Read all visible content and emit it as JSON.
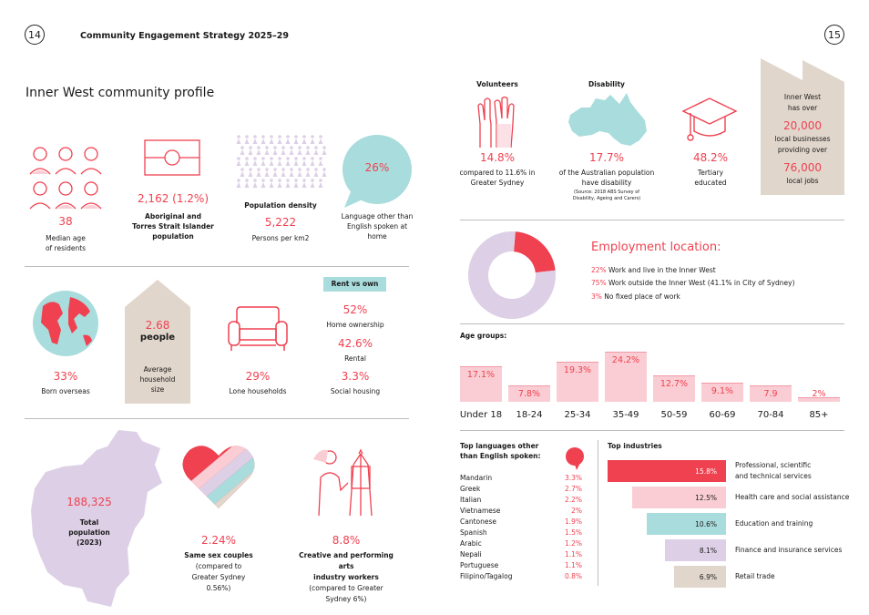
{
  "header": {
    "page_left": "14",
    "page_right": "15",
    "title": "Community Engagement Strategy 2025–29"
  },
  "profile": {
    "heading": "Inner West community profile",
    "median_age": {
      "value": "38",
      "label1": "Median age",
      "label2": "of residents"
    },
    "aboriginal": {
      "value": "2,162  (1.2%)",
      "label1": "Aboriginal and",
      "label2": "Torres Strait Islander",
      "label3": "population"
    },
    "density": {
      "title": "Population density",
      "value": "5,222",
      "label": "Persons per km2"
    },
    "language": {
      "value": "26%",
      "label1": "Language other than",
      "label2": "English spoken at",
      "label3": "home"
    },
    "born_overseas": {
      "value": "33%",
      "label": "Born overseas"
    },
    "household": {
      "value": "2.68",
      "unit": "people",
      "label1": "Average",
      "label2": "household",
      "label3": "size"
    },
    "lone": {
      "value": "29%",
      "label": "Lone households"
    },
    "rent": {
      "title": "Rent vs own",
      "items": [
        {
          "value": "52%",
          "label": "Home ownership"
        },
        {
          "value": "42.6%",
          "label": "Rental"
        },
        {
          "value": "3.3%",
          "label": "Social housing"
        }
      ]
    },
    "population": {
      "value": "188,325",
      "label1": "Total",
      "label2": "population",
      "label3": "(2023)"
    },
    "same_sex": {
      "value": "2.24%",
      "label1": "Same sex couples",
      "label2": "(compared to",
      "label3": "Greater Sydney",
      "label4": "0.56%)"
    },
    "creative": {
      "value": "8.8%",
      "label1": "Creative and performing arts",
      "label2": "industry workers",
      "label3": "(compared to Greater",
      "label4": "Sydney 6%)"
    }
  },
  "right": {
    "volunteers": {
      "title": "Volunteers",
      "value": "14.8%",
      "label1": "compared to 11.6% in",
      "label2": "Greater Sydney"
    },
    "disability": {
      "title": "Disability",
      "value": "17.7%",
      "label1": "of the Australian population",
      "label2": "have disability",
      "source1": "(Source: 2018 ABS Survey of",
      "source2": "Disability, Ageing and Carers)"
    },
    "tertiary": {
      "value": "48.2%",
      "label1": "Tertiary",
      "label2": "educated"
    },
    "business": {
      "line1": "Inner West",
      "line2": "has over",
      "value1": "20,000",
      "line3": "local businesses",
      "line4": "providing over",
      "value2": "76,000",
      "line5": "local jobs"
    },
    "employment": {
      "title": "Employment location:",
      "items": [
        {
          "pct": "22%",
          "text": " Work and live in the Inner West"
        },
        {
          "pct": "75%",
          "text": " Work outside the Inner West (41.1% in City of Sydney)"
        },
        {
          "pct": "3%",
          "text": " No fixed place of work"
        }
      ]
    },
    "age_title": "Age groups:",
    "languages_title1": "Top languages other",
    "languages_title2": "than English spoken:",
    "industries_title": "Top industries"
  },
  "employment_chart": {
    "type": "pie",
    "values": [
      22,
      75,
      3
    ],
    "colors": [
      "#ef4150",
      "#ddd0e6",
      "#ddd0e6"
    ]
  },
  "chart_data": {
    "type": "bar",
    "categories": [
      "Under 18",
      "18-24",
      "25-34",
      "35-49",
      "50-59",
      "60-69",
      "70-84",
      "85+"
    ],
    "values": [
      17.1,
      7.8,
      19.3,
      24.2,
      12.7,
      9.1,
      7.9,
      2
    ],
    "labels": [
      "17.1%",
      "7.8%",
      "19.3%",
      "24.2%",
      "12.7%",
      "9.1%",
      "7.9",
      "2%"
    ],
    "ylim": [
      0,
      24.2
    ]
  },
  "languages": [
    {
      "name": "Mandarin",
      "pct": "3.3%"
    },
    {
      "name": "Greek",
      "pct": "2.7%"
    },
    {
      "name": "Italian",
      "pct": "2.2%"
    },
    {
      "name": "Vietnamese",
      "pct": "2%"
    },
    {
      "name": "Cantonese",
      "pct": "1.9%"
    },
    {
      "name": "Spanish",
      "pct": "1.5%"
    },
    {
      "name": "Arabic",
      "pct": "1.2%"
    },
    {
      "name": "Nepali",
      "pct": "1.1%"
    },
    {
      "name": "Portuguese",
      "pct": "1.1%"
    },
    {
      "name": "Filipino/Tagalog",
      "pct": "0.8%"
    }
  ],
  "industries": [
    {
      "value": 15.8,
      "label": "15.8%",
      "name1": "Professional, scientific",
      "name2": "and technical services",
      "color": "#ef4150",
      "text_color": "#ffffff"
    },
    {
      "value": 12.5,
      "label": "12.5%",
      "name1": "Health care and social assistance",
      "name2": "",
      "color": "#f9cdd3",
      "text_color": "#1a1a1a"
    },
    {
      "value": 10.6,
      "label": "10.6%",
      "name1": "Education and training",
      "name2": "",
      "color": "#a9dcdc",
      "text_color": "#1a1a1a"
    },
    {
      "value": 8.1,
      "label": "8.1%",
      "name1": "Finance and insurance services",
      "name2": "",
      "color": "#ddd0e6",
      "text_color": "#1a1a1a"
    },
    {
      "value": 6.9,
      "label": "6.9%",
      "name1": "Retail trade",
      "name2": "",
      "color": "#e1d6cc",
      "text_color": "#1a1a1a"
    }
  ],
  "colors": {
    "accent": "#ef4150",
    "pink": "#f9cdd3",
    "teal": "#a9dcdc",
    "lilac": "#ddd0e6",
    "beige": "#e1d6cc"
  }
}
